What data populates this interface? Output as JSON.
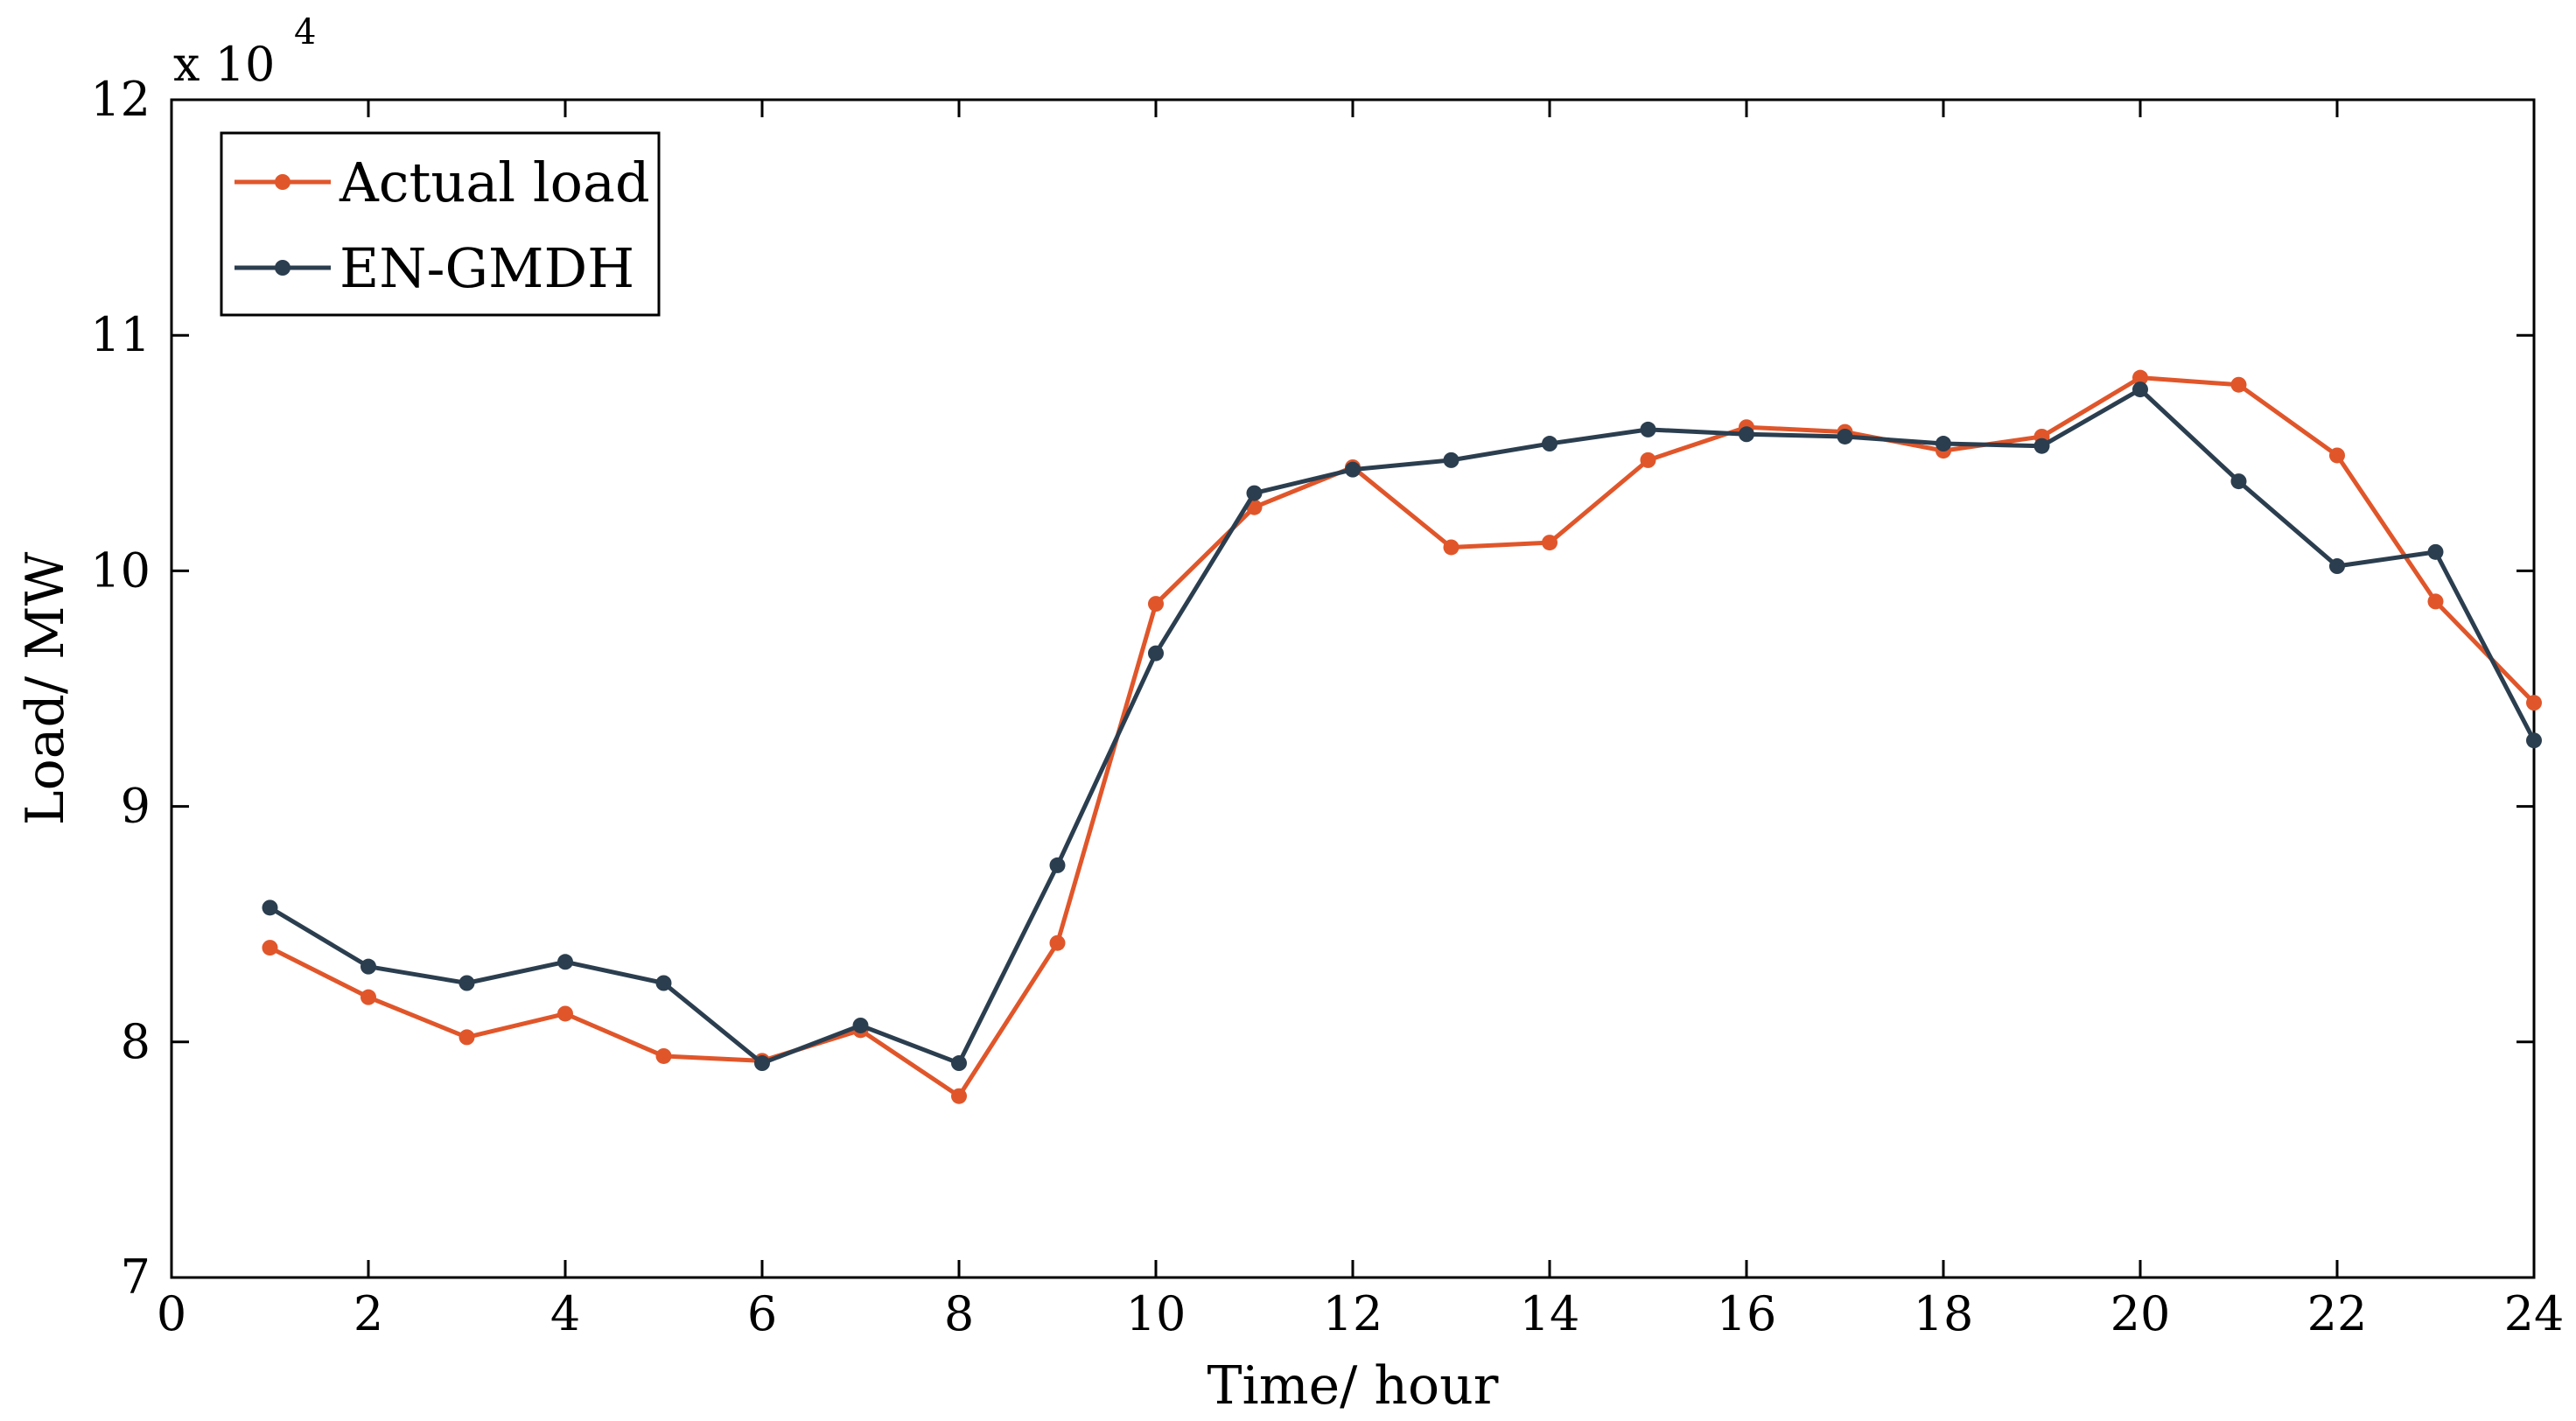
{
  "chart_data": {
    "type": "line",
    "title": "",
    "xlabel": "Time/ hour",
    "ylabel": "Load/ MW",
    "y_multiplier": "x 10",
    "y_multiplier_exponent": "4",
    "xlim": [
      0,
      24
    ],
    "ylim": [
      7,
      12
    ],
    "xticks": [
      0,
      2,
      4,
      6,
      8,
      10,
      12,
      14,
      16,
      18,
      20,
      22,
      24
    ],
    "yticks": [
      7,
      8,
      9,
      10,
      11,
      12
    ],
    "grid": false,
    "legend_position": "top-left",
    "x": [
      1,
      2,
      3,
      4,
      5,
      6,
      7,
      8,
      9,
      10,
      11,
      12,
      13,
      14,
      15,
      16,
      17,
      18,
      19,
      20,
      21,
      22,
      23,
      24
    ],
    "series": [
      {
        "name": "Actual load",
        "color": "#E0562A",
        "values": [
          8.4,
          8.19,
          8.02,
          8.12,
          7.94,
          7.92,
          8.05,
          7.77,
          8.42,
          9.86,
          10.27,
          10.44,
          10.1,
          10.12,
          10.47,
          10.61,
          10.59,
          10.51,
          10.57,
          10.82,
          10.79,
          10.49,
          9.87,
          9.44
        ]
      },
      {
        "name": "EN-GMDH",
        "color": "#2B3E4F",
        "values": [
          8.57,
          8.32,
          8.25,
          8.34,
          8.25,
          7.91,
          8.07,
          7.91,
          8.75,
          9.65,
          10.33,
          10.43,
          10.47,
          10.54,
          10.6,
          10.58,
          10.57,
          10.54,
          10.53,
          10.77,
          10.38,
          10.02,
          10.08,
          9.28
        ]
      }
    ]
  }
}
